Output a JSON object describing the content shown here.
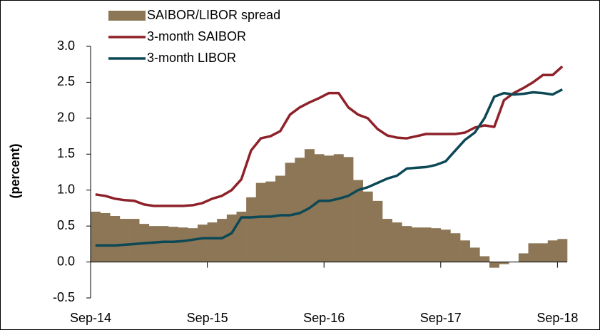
{
  "chart_data": {
    "type": "bar_line",
    "y_label": "(percent)",
    "categories": [
      "Sep-14",
      null,
      null,
      null,
      null,
      null,
      null,
      null,
      null,
      null,
      null,
      null,
      "Sep-15",
      null,
      null,
      null,
      null,
      null,
      null,
      null,
      null,
      null,
      null,
      null,
      "Sep-16",
      null,
      null,
      null,
      null,
      null,
      null,
      null,
      null,
      null,
      null,
      null,
      "Sep-17",
      null,
      null,
      null,
      null,
      null,
      null,
      null,
      null,
      null,
      null,
      null,
      "Sep-18"
    ],
    "series": [
      {
        "name": "SAIBOR/LIBOR spread",
        "kind": "bar",
        "color": "#8c7656",
        "values": [
          0.7,
          0.68,
          0.64,
          0.6,
          0.6,
          0.53,
          0.5,
          0.5,
          0.49,
          0.48,
          0.47,
          0.52,
          0.55,
          0.6,
          0.66,
          0.7,
          0.9,
          1.1,
          1.12,
          1.2,
          1.38,
          1.45,
          1.57,
          1.5,
          1.48,
          1.5,
          1.46,
          1.14,
          0.98,
          0.85,
          0.6,
          0.55,
          0.5,
          0.48,
          0.48,
          0.47,
          0.45,
          0.4,
          0.3,
          0.2,
          0.08,
          -0.08,
          -0.03,
          0.0,
          0.12,
          0.26,
          0.26,
          0.3,
          0.32
        ]
      },
      {
        "name": "3-month SAIBOR",
        "kind": "line",
        "color": "#8e2129",
        "values": [
          0.94,
          0.92,
          0.88,
          0.86,
          0.85,
          0.8,
          0.78,
          0.78,
          0.78,
          0.78,
          0.79,
          0.82,
          0.88,
          0.92,
          1.0,
          1.15,
          1.55,
          1.72,
          1.75,
          1.82,
          2.05,
          2.15,
          2.22,
          2.28,
          2.35,
          2.35,
          2.15,
          2.05,
          2.0,
          1.85,
          1.76,
          1.73,
          1.72,
          1.75,
          1.78,
          1.78,
          1.78,
          1.78,
          1.8,
          1.87,
          1.9,
          1.88,
          2.25,
          2.35,
          2.42,
          2.5,
          2.6,
          2.6,
          2.72
        ]
      },
      {
        "name": "3-month LIBOR",
        "kind": "line",
        "color": "#0c4855",
        "values": [
          0.23,
          0.23,
          0.23,
          0.24,
          0.25,
          0.26,
          0.27,
          0.28,
          0.28,
          0.29,
          0.31,
          0.33,
          0.33,
          0.33,
          0.4,
          0.62,
          0.62,
          0.63,
          0.63,
          0.65,
          0.65,
          0.68,
          0.75,
          0.85,
          0.85,
          0.88,
          0.92,
          1.0,
          1.04,
          1.1,
          1.16,
          1.2,
          1.3,
          1.31,
          1.32,
          1.35,
          1.4,
          1.55,
          1.7,
          1.8,
          2.0,
          2.3,
          2.35,
          2.33,
          2.34,
          2.36,
          2.35,
          2.33,
          2.4
        ]
      }
    ],
    "ylim": [
      -0.5,
      3.0
    ],
    "yticks": [
      -0.5,
      {
        "value": 0,
        "label": "0.0"
      },
      0.5,
      {
        "value": 1,
        "label": "1.0"
      },
      1.5,
      {
        "value": 2,
        "label": "2.0"
      },
      2.5,
      {
        "value": 3,
        "label": "3.0"
      }
    ],
    "legend": "upper left",
    "grid": false
  }
}
